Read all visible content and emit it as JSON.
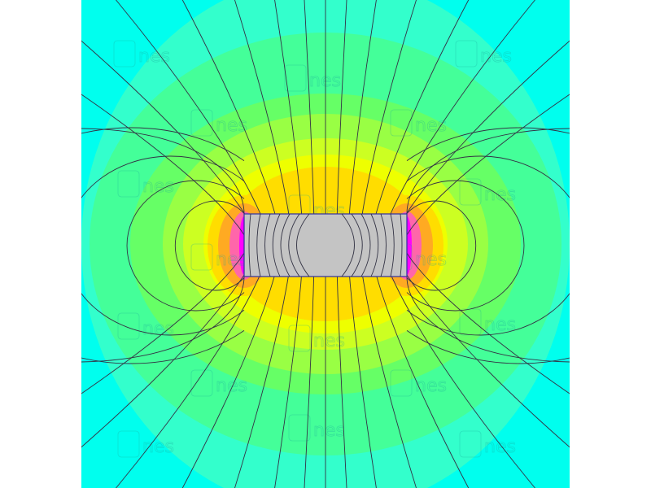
{
  "watermark": {
    "text": "nes",
    "letter": "E"
  },
  "colors": {
    "background": "#ffffff",
    "outer": "#00ffee",
    "bands": [
      "#33ffcc",
      "#44ff99",
      "#66ff66",
      "#99ff44",
      "#ccff22",
      "#eeff00",
      "#ffdd00",
      "#ffaa22",
      "#ff66aa",
      "#ff00ff"
    ],
    "magnet_fill": "#c4c4c4",
    "magnet_stroke": "#3030a0",
    "field_line": "#333344"
  }
}
